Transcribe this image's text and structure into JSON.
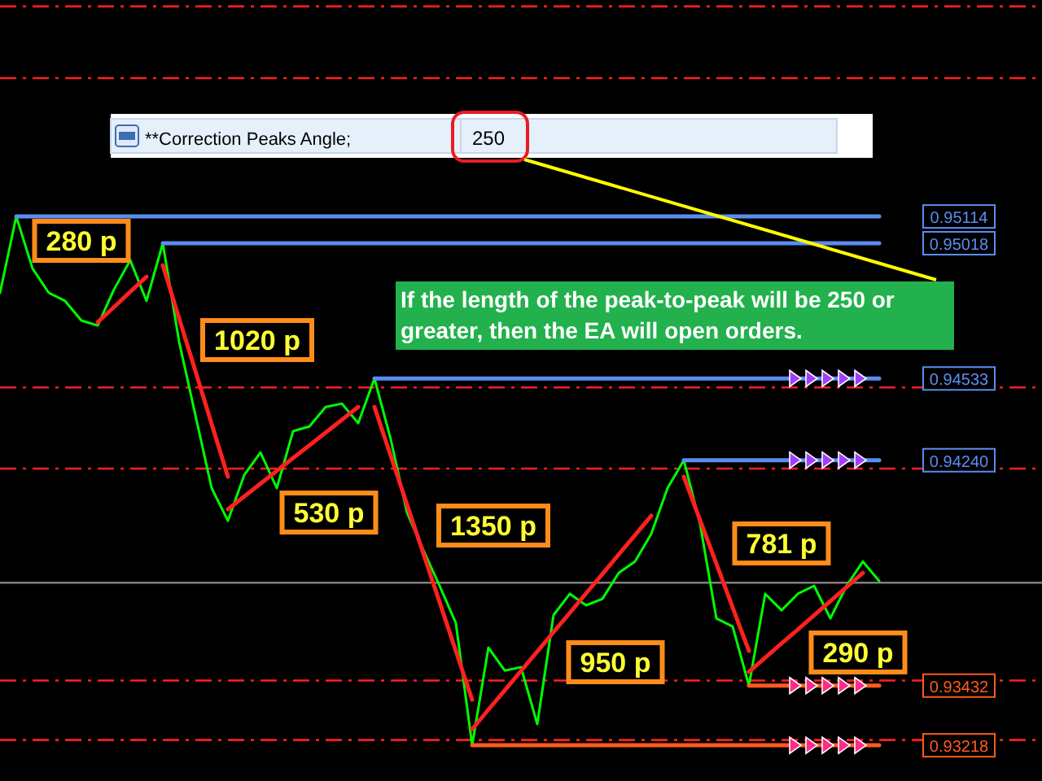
{
  "chart_data": {
    "type": "line",
    "categories": [
      null,
      null,
      null,
      null,
      null,
      null,
      null,
      null,
      null,
      null,
      null,
      null,
      null,
      null,
      null,
      null,
      null,
      null,
      null,
      null,
      null,
      null,
      null,
      null,
      null,
      null,
      null,
      null,
      null,
      null,
      null,
      null,
      null,
      null,
      null,
      null,
      null,
      null,
      null,
      null,
      null,
      null,
      null,
      null,
      null,
      null,
      null,
      null,
      null,
      null,
      null,
      null,
      null,
      null,
      null
    ],
    "ylim": [
      0.9309,
      0.9589
    ],
    "yticks": [
      {
        "value": 0.95114,
        "label": "0.95114"
      },
      {
        "value": 0.95018,
        "label": "0.95018"
      },
      {
        "value": 0.94533,
        "label": "0.94533"
      },
      {
        "value": 0.9424,
        "label": "0.94240"
      },
      {
        "value": 0.93432,
        "label": "0.93432"
      },
      {
        "value": 0.93218,
        "label": "0.93218"
      }
    ],
    "tick_labels": "y",
    "series": [
      {
        "color": "#00ff00",
        "values": [
          0.9484,
          0.95114,
          0.94927,
          0.9484,
          0.94811,
          0.94741,
          0.94723,
          0.94852,
          0.94957,
          0.94811,
          0.95018,
          0.94665,
          0.94402,
          0.9414,
          0.94023,
          0.94187,
          0.94268,
          0.9414,
          0.94344,
          0.94361,
          0.94431,
          0.94443,
          0.94373,
          0.94533,
          0.94315,
          0.94052,
          0.93918,
          0.9379,
          0.93656,
          0.93218,
          0.93568,
          0.93486,
          0.93498,
          0.93294,
          0.93685,
          0.93761,
          0.9372,
          0.93743,
          0.93836,
          0.93877,
          0.93976,
          0.9414,
          0.9424,
          0.94011,
          0.93673,
          0.93644,
          0.93432,
          0.93761,
          0.93702,
          0.93761,
          0.9379,
          0.93673,
          0.9379,
          0.93877,
          0.93807
        ]
      },
      {
        "color": "#ff2020",
        "values": [
          null,
          null,
          null,
          null,
          null,
          null,
          0.94735,
          0.94789,
          0.94844,
          0.94898,
          null,
          null,
          null,
          null,
          null,
          null,
          null,
          null,
          null,
          null,
          null,
          null,
          null,
          null,
          null,
          null,
          null,
          null,
          null,
          null,
          null,
          null,
          null,
          null,
          null,
          null,
          null,
          null,
          null,
          null,
          null,
          null,
          null,
          null,
          null,
          null,
          null,
          null,
          null,
          null,
          null,
          null,
          null,
          null,
          null
        ]
      },
      {
        "color": "#ff2020",
        "values": [
          null,
          null,
          null,
          null,
          null,
          null,
          null,
          null,
          null,
          null,
          0.94939,
          0.94749,
          0.9456,
          0.9437,
          0.94181,
          null,
          null,
          null,
          null,
          null,
          null,
          null,
          null,
          null,
          null,
          null,
          null,
          null,
          null,
          null,
          null,
          null,
          null,
          null,
          null,
          null,
          null,
          null,
          null,
          null,
          null,
          null,
          null,
          null,
          null,
          null,
          null,
          null,
          null,
          null,
          null,
          null,
          null,
          null,
          null
        ]
      },
      {
        "color": "#ff2020",
        "values": [
          null,
          null,
          null,
          null,
          null,
          null,
          null,
          null,
          null,
          null,
          null,
          null,
          null,
          null,
          0.94064,
          0.9411,
          0.94156,
          0.94202,
          0.94248,
          0.94293,
          0.94339,
          0.94385,
          0.94431,
          null,
          null,
          null,
          null,
          null,
          null,
          null,
          null,
          null,
          null,
          null,
          null,
          null,
          null,
          null,
          null,
          null,
          null,
          null,
          null,
          null,
          null,
          null,
          null,
          null,
          null,
          null,
          null,
          null,
          null,
          null,
          null
        ]
      },
      {
        "color": "#ff2020",
        "values": [
          null,
          null,
          null,
          null,
          null,
          null,
          null,
          null,
          null,
          null,
          null,
          null,
          null,
          null,
          null,
          null,
          null,
          null,
          null,
          null,
          null,
          null,
          null,
          0.94431,
          0.94256,
          0.94081,
          0.93906,
          0.93731,
          0.93556,
          0.93381,
          null,
          null,
          null,
          null,
          null,
          null,
          null,
          null,
          null,
          null,
          null,
          null,
          null,
          null,
          null,
          null,
          null,
          null,
          null,
          null,
          null,
          null,
          null,
          null,
          null
        ]
      },
      {
        "color": "#ff2020",
        "values": [
          null,
          null,
          null,
          null,
          null,
          null,
          null,
          null,
          null,
          null,
          null,
          null,
          null,
          null,
          null,
          null,
          null,
          null,
          null,
          null,
          null,
          null,
          null,
          null,
          null,
          null,
          null,
          null,
          null,
          0.93276,
          0.93346,
          0.93415,
          0.93485,
          0.93554,
          0.93624,
          0.93693,
          0.93763,
          0.93832,
          0.93902,
          0.93971,
          0.94041,
          null,
          null,
          null,
          null,
          null,
          null,
          null,
          null,
          null,
          null,
          null,
          null,
          null,
          null
        ]
      },
      {
        "color": "#ff2020",
        "values": [
          null,
          null,
          null,
          null,
          null,
          null,
          null,
          null,
          null,
          null,
          null,
          null,
          null,
          null,
          null,
          null,
          null,
          null,
          null,
          null,
          null,
          null,
          null,
          null,
          null,
          null,
          null,
          null,
          null,
          null,
          null,
          null,
          null,
          null,
          null,
          null,
          null,
          null,
          null,
          null,
          null,
          null,
          0.94181,
          0.94025,
          0.93869,
          0.93712,
          0.93556,
          null,
          null,
          null,
          null,
          null,
          null,
          null,
          null
        ]
      },
      {
        "color": "#ff2020",
        "values": [
          null,
          null,
          null,
          null,
          null,
          null,
          null,
          null,
          null,
          null,
          null,
          null,
          null,
          null,
          null,
          null,
          null,
          null,
          null,
          null,
          null,
          null,
          null,
          null,
          null,
          null,
          null,
          null,
          null,
          null,
          null,
          null,
          null,
          null,
          null,
          null,
          null,
          null,
          null,
          null,
          null,
          null,
          null,
          null,
          null,
          null,
          0.93481,
          0.93532,
          0.93583,
          0.93633,
          0.93684,
          0.93735,
          0.93785,
          0.93836,
          null
        ]
      },
      {
        "color": "#5b8def",
        "values": [
          null,
          0.95114,
          0.95114,
          0.95114,
          0.95114,
          0.95114,
          0.95114,
          0.95114,
          0.95114,
          0.95114,
          0.95114,
          0.95114,
          0.95114,
          0.95114,
          0.95114,
          0.95114,
          0.95114,
          0.95114,
          0.95114,
          0.95114,
          0.95114,
          0.95114,
          0.95114,
          0.95114,
          0.95114,
          0.95114,
          0.95114,
          0.95114,
          0.95114,
          0.95114,
          0.95114,
          0.95114,
          0.95114,
          0.95114,
          0.95114,
          0.95114,
          0.95114,
          0.95114,
          0.95114,
          0.95114,
          0.95114,
          0.95114,
          0.95114,
          0.95114,
          0.95114,
          0.95114,
          0.95114,
          0.95114,
          0.95114,
          0.95114,
          0.95114,
          0.95114,
          0.95114,
          0.95114,
          0.95114
        ]
      },
      {
        "color": "#5b8def",
        "values": [
          null,
          null,
          null,
          null,
          null,
          null,
          null,
          null,
          null,
          null,
          0.95018,
          0.95018,
          0.95018,
          0.95018,
          0.95018,
          0.95018,
          0.95018,
          0.95018,
          0.95018,
          0.95018,
          0.95018,
          0.95018,
          0.95018,
          0.95018,
          0.95018,
          0.95018,
          0.95018,
          0.95018,
          0.95018,
          0.95018,
          0.95018,
          0.95018,
          0.95018,
          0.95018,
          0.95018,
          0.95018,
          0.95018,
          0.95018,
          0.95018,
          0.95018,
          0.95018,
          0.95018,
          0.95018,
          0.95018,
          0.95018,
          0.95018,
          0.95018,
          0.95018,
          0.95018,
          0.95018,
          0.95018,
          0.95018,
          0.95018,
          0.95018,
          0.95018
        ]
      },
      {
        "color": "#5b8def",
        "values": [
          null,
          null,
          null,
          null,
          null,
          null,
          null,
          null,
          null,
          null,
          null,
          null,
          null,
          null,
          null,
          null,
          null,
          null,
          null,
          null,
          null,
          null,
          null,
          0.94533,
          0.94533,
          0.94533,
          0.94533,
          0.94533,
          0.94533,
          0.94533,
          0.94533,
          0.94533,
          0.94533,
          0.94533,
          0.94533,
          0.94533,
          0.94533,
          0.94533,
          0.94533,
          0.94533,
          0.94533,
          0.94533,
          0.94533,
          0.94533,
          0.94533,
          0.94533,
          0.94533,
          0.94533,
          0.94533,
          0.94533,
          0.94533,
          0.94533,
          0.94533,
          0.94533,
          0.94533
        ]
      },
      {
        "color": "#5b8def",
        "values": [
          null,
          null,
          null,
          null,
          null,
          null,
          null,
          null,
          null,
          null,
          null,
          null,
          null,
          null,
          null,
          null,
          null,
          null,
          null,
          null,
          null,
          null,
          null,
          null,
          null,
          null,
          null,
          null,
          null,
          null,
          null,
          null,
          null,
          null,
          null,
          null,
          null,
          null,
          null,
          null,
          null,
          null,
          0.9424,
          0.9424,
          0.9424,
          0.9424,
          0.9424,
          0.9424,
          0.9424,
          0.9424,
          0.9424,
          0.9424,
          0.9424,
          0.9424,
          0.9424
        ]
      },
      {
        "color": "#ff5a1f",
        "values": [
          null,
          null,
          null,
          null,
          null,
          null,
          null,
          null,
          null,
          null,
          null,
          null,
          null,
          null,
          null,
          null,
          null,
          null,
          null,
          null,
          null,
          null,
          null,
          null,
          null,
          null,
          null,
          null,
          null,
          null,
          null,
          null,
          null,
          null,
          null,
          null,
          null,
          null,
          null,
          null,
          null,
          null,
          null,
          null,
          null,
          null,
          0.93432,
          0.93432,
          0.93432,
          0.93432,
          0.93432,
          0.93432,
          0.93432,
          0.93432,
          0.93432
        ]
      },
      {
        "color": "#ff5a1f",
        "values": [
          null,
          null,
          null,
          null,
          null,
          null,
          null,
          null,
          null,
          null,
          null,
          null,
          null,
          null,
          null,
          null,
          null,
          null,
          null,
          null,
          null,
          null,
          null,
          null,
          null,
          null,
          null,
          null,
          null,
          0.93218,
          0.93218,
          0.93218,
          0.93218,
          0.93218,
          0.93218,
          0.93218,
          0.93218,
          0.93218,
          0.93218,
          0.93218,
          0.93218,
          0.93218,
          0.93218,
          0.93218,
          0.93218,
          0.93218,
          0.93218,
          0.93218,
          0.93218,
          0.93218,
          0.93218,
          0.93218,
          0.93218,
          0.93218,
          0.93218
        ]
      }
    ],
    "ref_lines": [
      {
        "axis": "y",
        "value": 0.95867,
        "color": "#ff2020",
        "line_style": "dashdot"
      },
      {
        "axis": "y",
        "value": 0.9561,
        "color": "#ff2020",
        "line_style": "dashdot"
      },
      {
        "axis": "y",
        "value": 0.94501,
        "color": "#ff2020",
        "line_style": "dashdot"
      },
      {
        "axis": "y",
        "value": 0.9421,
        "color": "#ff2020",
        "line_style": "dashdot"
      },
      {
        "axis": "y",
        "value": 0.9345,
        "color": "#ff2020",
        "line_style": "dashdot"
      },
      {
        "axis": "y",
        "value": 0.93237,
        "color": "#ff2020",
        "line_style": "dashdot"
      },
      {
        "axis": "y",
        "value": 0.93801,
        "color": "#808080",
        "line_style": "solid"
      }
    ],
    "annotations": [
      "280 p",
      "1020 p",
      "530 p",
      "1350 p",
      "950 p",
      "781 p",
      "290 p",
      "If the length of the peak-to-peak will be 250 or greater, then the EA will open orders.",
      "**Correction Peaks Angle;",
      "250"
    ]
  }
}
